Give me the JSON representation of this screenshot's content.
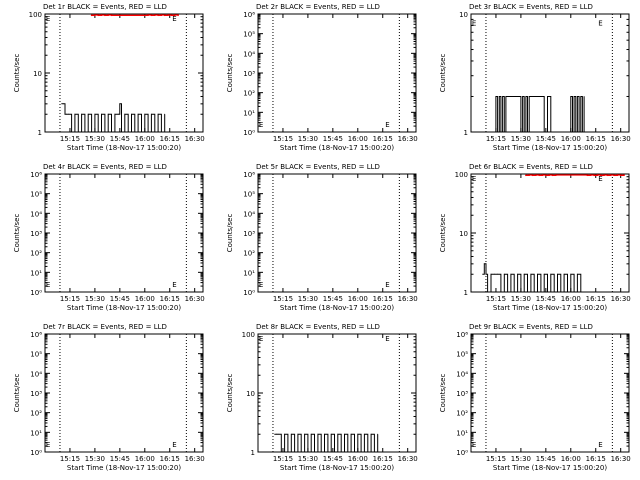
{
  "figure": {
    "title_suffix": " BLACK = Events, RED = LLD",
    "xlabel": "Start Time (18-Nov-17 15:00:20)",
    "ylabel": "Counts/sec",
    "colors": {
      "events": "#000000",
      "lld": "#ff0000",
      "axis": "#000000",
      "background": "#ffffff"
    }
  },
  "chart_data": [
    {
      "type": "line",
      "title": "Det 1r BLACK = Events, RED = LLD",
      "detector": "Det 1r",
      "xlabel": "Start Time (18-Nov-17 15:00:20)",
      "ylabel": "Counts/sec",
      "xlim": [
        0,
        95
      ],
      "ylim": [
        1,
        100
      ],
      "yscale": "log",
      "xticks": [
        15,
        30,
        45,
        60,
        75,
        90
      ],
      "xtick_labels": [
        "15:15",
        "15:30",
        "15:45",
        "16:00",
        "16:15",
        "16:30"
      ],
      "yticks": [
        1,
        10,
        100
      ],
      "ytick_labels": [
        "1",
        "10",
        "100"
      ],
      "vlines": [
        9,
        85
      ],
      "markers": [
        {
          "x": 0.5,
          "y": 85
        },
        {
          "x": 76.5,
          "y": 85
        }
      ],
      "series": [
        {
          "name": "Events",
          "color": "#000000",
          "x": [
            10,
            11,
            12,
            13,
            14,
            16,
            18,
            20,
            22,
            24,
            26,
            28,
            30,
            32,
            34,
            36,
            38,
            40,
            42,
            44,
            45,
            46,
            48,
            50,
            52,
            54,
            56,
            58,
            60,
            62,
            64,
            66,
            68,
            70,
            72
          ],
          "y": [
            3,
            3,
            2,
            2,
            2,
            1,
            2,
            1,
            2,
            1,
            2,
            1,
            2,
            1,
            2,
            1,
            2,
            1,
            2,
            2,
            3,
            1,
            2,
            1,
            2,
            1,
            2,
            1,
            2,
            1,
            2,
            1,
            2,
            1,
            2
          ]
        },
        {
          "name": "LLD",
          "color": "#ff0000",
          "x": [
            28,
            30,
            32,
            34,
            36,
            38,
            40,
            62,
            64,
            66,
            68,
            70,
            72,
            74,
            76,
            78,
            80
          ],
          "y": [
            95,
            96,
            95,
            96,
            95,
            96,
            95,
            96,
            95,
            96,
            95,
            96,
            95,
            96,
            95,
            96,
            95
          ]
        }
      ]
    },
    {
      "type": "line",
      "title": "Det 2r BLACK = Events, RED = LLD",
      "detector": "Det 2r",
      "xlabel": "Start Time (18-Nov-17 15:00:20)",
      "ylabel": "Counts/sec",
      "xlim": [
        0,
        95
      ],
      "ylim": [
        1,
        1000000
      ],
      "yscale": "log",
      "xticks": [
        15,
        30,
        45,
        60,
        75,
        90
      ],
      "xtick_labels": [
        "15:15",
        "15:30",
        "15:45",
        "16:00",
        "16:15",
        "16:30"
      ],
      "yticks": [
        1,
        10,
        100,
        1000,
        10000,
        100000,
        1000000
      ],
      "ytick_labels": [
        "10⁰",
        "10¹",
        "10²",
        "10³",
        "10⁴",
        "10⁵",
        "10⁶"
      ],
      "vlines": [
        9,
        85
      ],
      "markers": [
        {
          "x": 0.5,
          "y": 2.5
        },
        {
          "x": 76.5,
          "y": 2.5
        }
      ],
      "series": []
    },
    {
      "type": "line",
      "title": "Det 3r BLACK = Events, RED = LLD",
      "detector": "Det 3r",
      "xlabel": "Start Time (18-Nov-17 15:00:20)",
      "ylabel": "Counts/sec",
      "xlim": [
        0,
        95
      ],
      "ylim": [
        1,
        10
      ],
      "yscale": "log",
      "xticks": [
        15,
        30,
        45,
        60,
        75,
        90
      ],
      "xtick_labels": [
        "15:15",
        "15:30",
        "15:45",
        "16:00",
        "16:15",
        "16:30"
      ],
      "yticks": [
        1,
        10
      ],
      "ytick_labels": [
        "1",
        "10"
      ],
      "vlines": [
        9,
        85
      ],
      "markers": [
        {
          "x": 0.5,
          "y": 8.5
        },
        {
          "x": 76.5,
          "y": 8.5
        }
      ],
      "series": [
        {
          "name": "Events",
          "color": "#000000",
          "x": [
            14,
            15,
            16,
            17,
            18,
            19,
            20,
            21,
            30,
            31,
            32,
            33,
            34,
            35,
            44,
            46,
            48,
            60,
            61,
            62,
            63,
            64,
            65,
            66,
            67,
            68
          ],
          "y": [
            1,
            2,
            1,
            2,
            1,
            2,
            1,
            2,
            1,
            2,
            1,
            2,
            1,
            2,
            1,
            2,
            1,
            2,
            1,
            2,
            1,
            2,
            1,
            2,
            1,
            2
          ]
        }
      ]
    },
    {
      "type": "line",
      "title": "Det 4r BLACK = Events, RED = LLD",
      "detector": "Det 4r",
      "xlabel": "Start Time (18-Nov-17 15:00:20)",
      "ylabel": "Counts/sec",
      "xlim": [
        0,
        95
      ],
      "ylim": [
        1,
        1000000
      ],
      "yscale": "log",
      "xticks": [
        15,
        30,
        45,
        60,
        75,
        90
      ],
      "xtick_labels": [
        "15:15",
        "15:30",
        "15:45",
        "16:00",
        "16:15",
        "16:30"
      ],
      "yticks": [
        1,
        10,
        100,
        1000,
        10000,
        100000,
        1000000
      ],
      "ytick_labels": [
        "10⁰",
        "10¹",
        "10²",
        "10³",
        "10⁴",
        "10⁵",
        "10⁶"
      ],
      "vlines": [
        9,
        85
      ],
      "markers": [
        {
          "x": 0.5,
          "y": 2.5
        },
        {
          "x": 76.5,
          "y": 2.5
        }
      ],
      "series": []
    },
    {
      "type": "line",
      "title": "Det 5r BLACK = Events, RED = LLD",
      "detector": "Det 5r",
      "xlabel": "Start Time (18-Nov-17 15:00:20)",
      "ylabel": "Counts/sec",
      "xlim": [
        0,
        95
      ],
      "ylim": [
        1,
        1000000
      ],
      "yscale": "log",
      "xticks": [
        15,
        30,
        45,
        60,
        75,
        90
      ],
      "xtick_labels": [
        "15:15",
        "15:30",
        "15:45",
        "16:00",
        "16:15",
        "16:30"
      ],
      "yticks": [
        1,
        10,
        100,
        1000,
        10000,
        100000,
        1000000
      ],
      "ytick_labels": [
        "10⁰",
        "10¹",
        "10²",
        "10³",
        "10⁴",
        "10⁵",
        "10⁶"
      ],
      "vlines": [
        9,
        85
      ],
      "markers": [
        {
          "x": 0.5,
          "y": 2.5
        },
        {
          "x": 76.5,
          "y": 2.5
        }
      ],
      "series": []
    },
    {
      "type": "line",
      "title": "Det 6r BLACK = Events, RED = LLD",
      "detector": "Det 6r",
      "xlabel": "Start Time (18-Nov-17 15:00:20)",
      "ylabel": "Counts/sec",
      "xlim": [
        0,
        95
      ],
      "ylim": [
        1,
        100
      ],
      "yscale": "log",
      "xticks": [
        15,
        30,
        45,
        60,
        75,
        90
      ],
      "xtick_labels": [
        "15:15",
        "15:30",
        "15:45",
        "16:00",
        "16:15",
        "16:30"
      ],
      "yticks": [
        1,
        10,
        100
      ],
      "ytick_labels": [
        "1",
        "10",
        "100"
      ],
      "vlines": [
        9,
        85
      ],
      "markers": [
        {
          "x": 0.5,
          "y": 85
        },
        {
          "x": 76.5,
          "y": 85
        }
      ],
      "series": [
        {
          "name": "Events",
          "color": "#000000",
          "x": [
            7,
            8,
            9,
            10,
            12,
            14,
            16,
            18,
            20,
            22,
            24,
            26,
            28,
            30,
            32,
            34,
            36,
            38,
            40,
            42,
            44,
            46,
            48,
            50,
            52,
            54,
            56,
            58,
            60,
            62,
            64,
            66
          ],
          "y": [
            2,
            3,
            2,
            1,
            2,
            2,
            2,
            1,
            2,
            1,
            2,
            1,
            2,
            1,
            2,
            1,
            2,
            1,
            2,
            1,
            2,
            1,
            2,
            1,
            2,
            1,
            2,
            1,
            2,
            1,
            2,
            1
          ]
        },
        {
          "name": "LLD",
          "color": "#ff0000",
          "x": [
            33,
            35,
            37,
            39,
            41,
            43,
            45,
            47,
            49,
            51,
            70,
            72,
            74,
            76,
            78,
            80,
            82,
            84,
            86,
            88,
            90,
            92
          ],
          "y": [
            95,
            96,
            95,
            96,
            95,
            96,
            95,
            96,
            95,
            96,
            95,
            96,
            95,
            96,
            95,
            96,
            95,
            96,
            95,
            96,
            95,
            96
          ]
        }
      ]
    },
    {
      "type": "line",
      "title": "Det 7r BLACK = Events, RED = LLD",
      "detector": "Det 7r",
      "xlabel": "Start Time (18-Nov-17 15:00:20)",
      "ylabel": "Counts/sec",
      "xlim": [
        0,
        95
      ],
      "ylim": [
        1,
        1000000
      ],
      "yscale": "log",
      "xticks": [
        15,
        30,
        45,
        60,
        75,
        90
      ],
      "xtick_labels": [
        "15:15",
        "15:30",
        "15:45",
        "16:00",
        "16:15",
        "16:30"
      ],
      "yticks": [
        1,
        10,
        100,
        1000,
        10000,
        100000,
        1000000
      ],
      "ytick_labels": [
        "10⁰",
        "10¹",
        "10²",
        "10³",
        "10⁴",
        "10⁵",
        "10⁶"
      ],
      "vlines": [
        9,
        85
      ],
      "markers": [
        {
          "x": 0.5,
          "y": 2.5
        },
        {
          "x": 76.5,
          "y": 2.5
        }
      ],
      "series": []
    },
    {
      "type": "line",
      "title": "Det 8r BLACK = Events, RED = LLD",
      "detector": "Det 8r",
      "xlabel": "Start Time (18-Nov-17 15:00:20)",
      "ylabel": "Counts/sec",
      "xlim": [
        0,
        95
      ],
      "ylim": [
        1,
        100
      ],
      "yscale": "log",
      "xticks": [
        15,
        30,
        45,
        60,
        75,
        90
      ],
      "xtick_labels": [
        "15:15",
        "15:30",
        "15:45",
        "16:00",
        "16:15",
        "16:30"
      ],
      "yticks": [
        1,
        10,
        100
      ],
      "ytick_labels": [
        "1",
        "10",
        "100"
      ],
      "vlines": [
        9,
        85
      ],
      "markers": [
        {
          "x": 0.5,
          "y": 85
        },
        {
          "x": 76.5,
          "y": 85
        }
      ],
      "series": [
        {
          "name": "Events",
          "color": "#000000",
          "x": [
            10,
            11,
            12,
            14,
            16,
            18,
            20,
            22,
            24,
            26,
            28,
            30,
            32,
            34,
            36,
            38,
            40,
            42,
            44,
            46,
            48,
            50,
            52,
            54,
            56,
            58,
            60,
            62,
            64,
            65,
            66,
            68,
            70,
            72
          ],
          "y": [
            2,
            2,
            2,
            1,
            2,
            1,
            2,
            1,
            2,
            1,
            2,
            1,
            2,
            1,
            2,
            1,
            2,
            1,
            2,
            1,
            2,
            1,
            2,
            1,
            2,
            1,
            2,
            1,
            2,
            2,
            1,
            2,
            1,
            2
          ]
        }
      ]
    },
    {
      "type": "line",
      "title": "Det 9r BLACK = Events, RED = LLD",
      "detector": "Det 9r",
      "xlabel": "Start Time (18-Nov-17 15:00:20)",
      "ylabel": "Counts/sec",
      "xlim": [
        0,
        95
      ],
      "ylim": [
        1,
        1000000
      ],
      "yscale": "log",
      "xticks": [
        15,
        30,
        45,
        60,
        75,
        90
      ],
      "xtick_labels": [
        "15:15",
        "15:30",
        "15:45",
        "16:00",
        "16:15",
        "16:30"
      ],
      "yticks": [
        1,
        10,
        100,
        1000,
        10000,
        100000,
        1000000
      ],
      "ytick_labels": [
        "10⁰",
        "10¹",
        "10²",
        "10³",
        "10⁴",
        "10⁵",
        "10⁶"
      ],
      "vlines": [
        9,
        85
      ],
      "markers": [
        {
          "x": 0.5,
          "y": 2.5
        },
        {
          "x": 76.5,
          "y": 2.5
        }
      ],
      "series": []
    }
  ]
}
